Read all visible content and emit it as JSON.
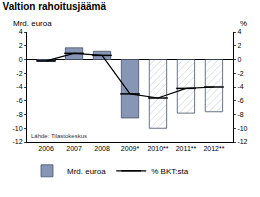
{
  "chart_data": {
    "type": "bar",
    "title": "Valtion rahoitusjäämä",
    "y_label": "Mrd. euroa",
    "y2_label": "%",
    "source": "Lähde: Tilastokeskus",
    "categories": [
      "2006",
      "2007",
      "2008",
      "2009*",
      "2010**",
      "2011**",
      "2012**"
    ],
    "series": [
      {
        "name": "Mrd. euroa",
        "type": "bar",
        "color": "#8896b6",
        "colors": [
          "#8896b6",
          "#8896b6",
          "#8896b6",
          "#8896b6",
          "#c9d0e0",
          "#c9d0e0",
          "#c9d0e0"
        ],
        "values": [
          -0.3,
          1.7,
          1.2,
          -8.5,
          -10.0,
          -7.8,
          -7.6
        ]
      },
      {
        "name": "% BKT:sta",
        "type": "line",
        "color": "#000000",
        "axis": "y2",
        "marker": "line-ew",
        "values": [
          -0.2,
          0.9,
          0.6,
          -5.0,
          -5.6,
          -4.2,
          -4.0
        ]
      }
    ],
    "ylim": [
      -12,
      4
    ],
    "yticks": [
      -12,
      -10,
      -8,
      -6,
      -4,
      -2,
      0,
      2,
      4
    ],
    "y2lim": [
      -12,
      4
    ],
    "y2ticks": [
      -12,
      -10,
      -8,
      -6,
      -4,
      -2,
      0,
      2,
      4
    ],
    "grid": false,
    "legend": "bottom"
  }
}
